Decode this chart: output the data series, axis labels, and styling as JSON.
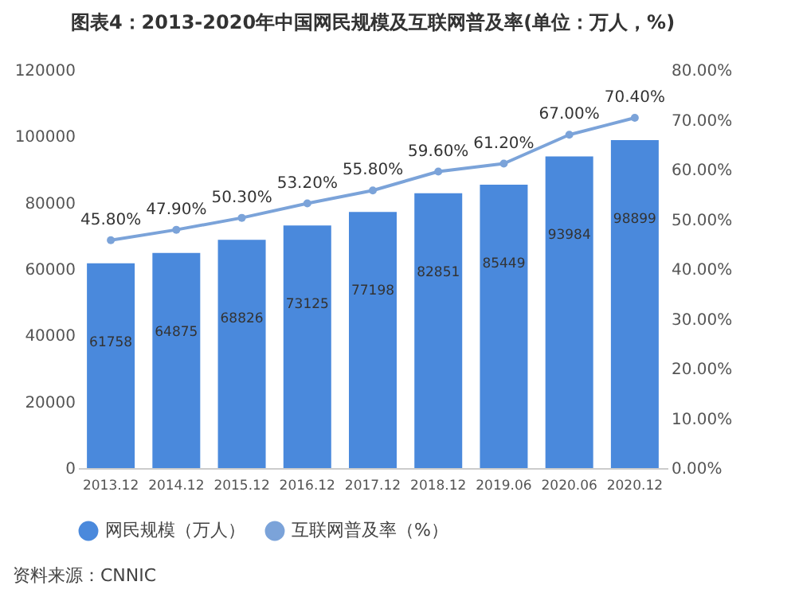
{
  "chart_data": {
    "type": "bar",
    "title": "图表4：2013-2020年中国网民规模及互联网普及率(单位：万人，%)",
    "categories": [
      "2013.12",
      "2014.12",
      "2015.12",
      "2016.12",
      "2017.12",
      "2018.12",
      "2019.06",
      "2020.06",
      "2020.12"
    ],
    "series": [
      {
        "name": "网民规模（万人）",
        "color": "#4a89dc",
        "values": [
          61758,
          64875,
          68826,
          73125,
          77198,
          82851,
          85449,
          93984,
          98899
        ]
      },
      {
        "name": "互联网普及率（%）",
        "type": "line",
        "axis": "y2",
        "color": "#7ba3d9",
        "values": [
          45.8,
          47.9,
          50.3,
          53.2,
          55.8,
          59.6,
          61.2,
          67.0,
          70.4
        ],
        "value_labels": [
          "45.80%",
          "47.90%",
          "50.30%",
          "53.20%",
          "55.80%",
          "59.60%",
          "61.20%",
          "67.00%",
          "70.40%"
        ]
      }
    ],
    "ylim": [
      0,
      120000
    ],
    "yticks": [
      0,
      20000,
      40000,
      60000,
      80000,
      100000,
      120000
    ],
    "y2lim": [
      0,
      80
    ],
    "y2ticks": [
      {
        "value": 0,
        "label": "0.00%"
      },
      {
        "value": 10,
        "label": "10.00%"
      },
      {
        "value": 20,
        "label": "20.00%"
      },
      {
        "value": 30,
        "label": "30.00%"
      },
      {
        "value": 40,
        "label": "40.00%"
      },
      {
        "value": 50,
        "label": "50.00%"
      },
      {
        "value": 60,
        "label": "60.00%"
      },
      {
        "value": 70,
        "label": "70.00%"
      },
      {
        "value": 80,
        "label": "80.00%"
      }
    ],
    "data_labels": true,
    "marker": "circle",
    "grid": false,
    "legend": "bottom",
    "annotations": [
      "资料来源：CNNIC"
    ]
  }
}
